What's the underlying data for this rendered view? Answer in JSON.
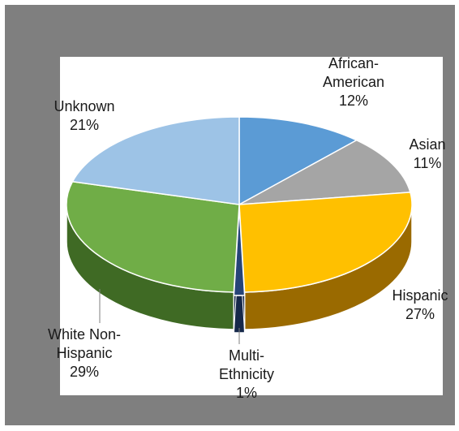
{
  "chart_data": {
    "type": "pie",
    "style": "3d-exploded",
    "slices": [
      {
        "label": "African-American",
        "label_lines": [
          "African-",
          "American"
        ],
        "percent_label": "12%",
        "value": 12,
        "color": "#5b9bd5",
        "side_color": "#2e5f8e"
      },
      {
        "label": "Asian",
        "label_lines": [
          "Asian"
        ],
        "percent_label": "11%",
        "value": 11,
        "color": "#a5a5a5",
        "side_color": "#6b6b6b"
      },
      {
        "label": "Hispanic",
        "label_lines": [
          "Hispanic"
        ],
        "percent_label": "27%",
        "value": 27,
        "color": "#ffc000",
        "side_color": "#9a6a00"
      },
      {
        "label": "Multi-Ethnicity",
        "label_lines": [
          "Multi-",
          "Ethnicity"
        ],
        "percent_label": "1%",
        "value": 1,
        "color": "#264478",
        "side_color": "#16284a"
      },
      {
        "label": "White Non-Hispanic",
        "label_lines": [
          "White Non-",
          "Hispanic"
        ],
        "percent_label": "29%",
        "value": 29,
        "color": "#70ad47",
        "side_color": "#3f6a24"
      },
      {
        "label": "Unknown",
        "label_lines": [
          "Unknown"
        ],
        "percent_label": "21%",
        "value": 21,
        "color": "#9dc3e6",
        "side_color": "#5f86aa"
      }
    ],
    "legend": "none",
    "colors": {
      "frame": "#7f7f7f",
      "plot_background": "#ffffff",
      "edge": "#ffffff"
    }
  }
}
